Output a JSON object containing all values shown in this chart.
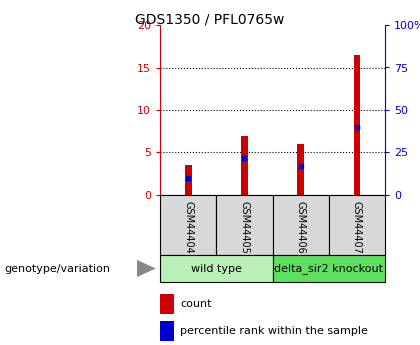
{
  "title": "GDS1350 / PFL0765w",
  "samples": [
    "GSM44404",
    "GSM44405",
    "GSM44406",
    "GSM44407"
  ],
  "count_values": [
    3.5,
    7.0,
    6.0,
    16.5
  ],
  "percentile_values": [
    10,
    22,
    17,
    40
  ],
  "groups": [
    {
      "label": "wild type",
      "indices": [
        0,
        1
      ],
      "color": "#b8f0b8"
    },
    {
      "label": "delta_sir2 knockout",
      "indices": [
        2,
        3
      ],
      "color": "#60e060"
    }
  ],
  "bar_color": "#cc0000",
  "dot_color": "#0000cc",
  "left_ylim": [
    0,
    20
  ],
  "right_ylim": [
    0,
    100
  ],
  "left_yticks": [
    0,
    5,
    10,
    15,
    20
  ],
  "right_yticks": [
    0,
    25,
    50,
    75,
    100
  ],
  "right_yticklabels": [
    "0",
    "25",
    "50",
    "75",
    "100%"
  ],
  "left_tick_color": "#cc0000",
  "right_tick_color": "#0000cc",
  "grid_yticks": [
    5,
    10,
    15
  ],
  "legend_count_label": "count",
  "legend_pct_label": "percentile rank within the sample",
  "genotype_label": "genotype/variation",
  "bg_color": "#d8d8d8",
  "plot_bg": "#ffffff",
  "bar_width": 0.12
}
